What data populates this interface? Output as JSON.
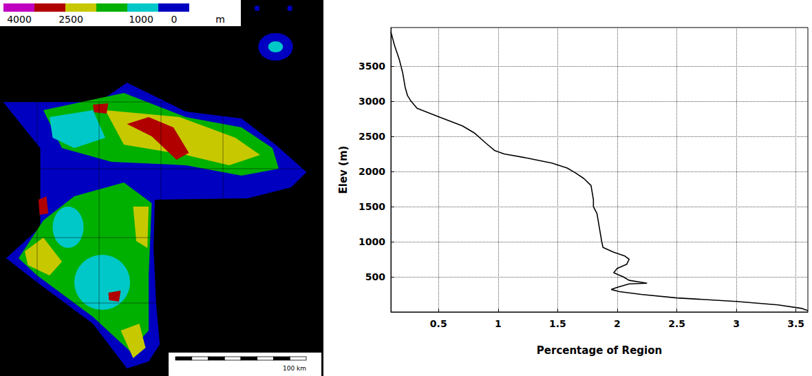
{
  "map": {
    "legend_colors": [
      "#c000c0",
      "#b00000",
      "#c8c800",
      "#00b000",
      "#00c8c8",
      "#0000c0"
    ],
    "legend_values": [
      4000,
      2500,
      1000,
      0
    ],
    "legend_unit": "m",
    "scale_bar_label": "100 km"
  },
  "chart_data": {
    "type": "line",
    "x_label": "Percentage of Region",
    "y_label": "Elev (m)",
    "color": "#000000",
    "grid": true,
    "xlim": [
      0.1,
      3.6
    ],
    "ylim": [
      0,
      4050
    ],
    "xticks": [
      0.5,
      1,
      1.5,
      2,
      2.5,
      3,
      3.5
    ],
    "yticks": [
      500,
      1000,
      1500,
      2000,
      2500,
      3000,
      3500
    ],
    "x": [
      0.1,
      0.13,
      0.17,
      0.2,
      0.22,
      0.24,
      0.27,
      0.32,
      0.5,
      0.7,
      0.8,
      0.9,
      0.97,
      1.05,
      1.25,
      1.45,
      1.58,
      1.65,
      1.72,
      1.78,
      1.79,
      1.8,
      1.8,
      1.83,
      1.84,
      1.85,
      1.86,
      1.87,
      1.88,
      1.97,
      2.06,
      2.1,
      2.08,
      2.0,
      1.97,
      2.05,
      2.1,
      2.25,
      2.1,
      2.0,
      1.95,
      2.02,
      2.2,
      2.5,
      3.0,
      3.35,
      3.55,
      3.6
    ],
    "values": [
      3990,
      3800,
      3600,
      3400,
      3200,
      3080,
      3000,
      2900,
      2780,
      2650,
      2550,
      2400,
      2300,
      2250,
      2190,
      2120,
      2050,
      1980,
      1900,
      1800,
      1700,
      1600,
      1500,
      1400,
      1300,
      1200,
      1100,
      1000,
      920,
      850,
      800,
      750,
      680,
      620,
      560,
      500,
      450,
      410,
      400,
      350,
      320,
      290,
      250,
      200,
      150,
      100,
      50,
      20
    ]
  }
}
